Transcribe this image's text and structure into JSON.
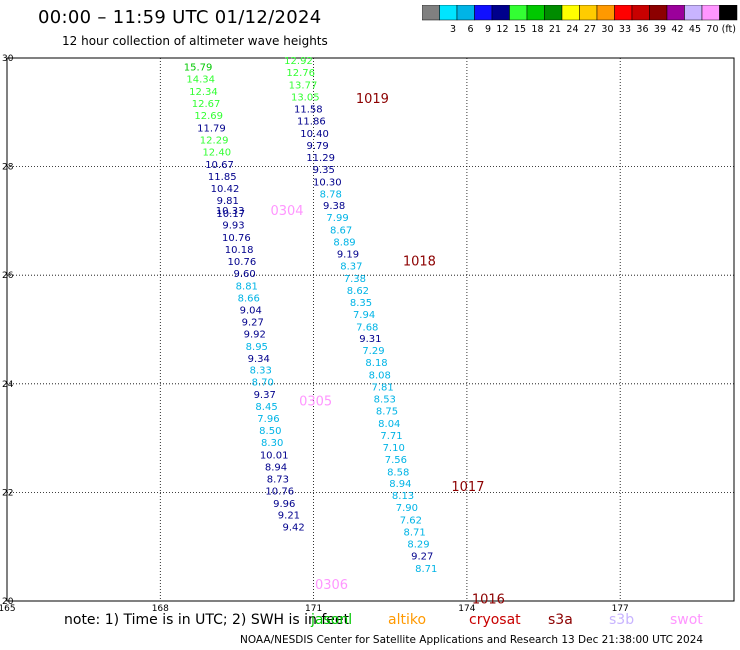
{
  "header": {
    "title": "00:00 – 11:59 UTC 01/12/2024",
    "subtitle": "12 hour collection of altimeter wave heights"
  },
  "colorbar": {
    "unit": "(ft)",
    "bins": [
      {
        "color": "#808080",
        "label": ""
      },
      {
        "color": "#00e5ff",
        "label": "3"
      },
      {
        "color": "#00b4e6",
        "label": "6"
      },
      {
        "color": "#1010ff",
        "label": "9"
      },
      {
        "color": "#00008c",
        "label": "12"
      },
      {
        "color": "#33ff33",
        "label": "15"
      },
      {
        "color": "#00c800",
        "label": "18"
      },
      {
        "color": "#008c00",
        "label": "21"
      },
      {
        "color": "#ffff00",
        "label": "24"
      },
      {
        "color": "#ffcc00",
        "label": "27"
      },
      {
        "color": "#ff9900",
        "label": "30"
      },
      {
        "color": "#ff0000",
        "label": "33"
      },
      {
        "color": "#c80000",
        "label": "36"
      },
      {
        "color": "#8c0000",
        "label": "39"
      },
      {
        "color": "#9b009b",
        "label": "42"
      },
      {
        "color": "#c8b4ff",
        "label": "45"
      },
      {
        "color": "#ff96ff",
        "label": "70"
      },
      {
        "color": "#000000",
        "label": ""
      }
    ]
  },
  "map": {
    "lon_range": [
      165,
      179
    ],
    "lat_range": [
      20,
      30
    ],
    "lon_ticks": [
      "165",
      "168",
      "171",
      "174",
      "177"
    ],
    "lat_ticks": [
      "30",
      "28",
      "26",
      "24",
      "22",
      "20"
    ],
    "track_west": [
      {
        "v": "15.79",
        "lat": 29.83,
        "c": "#00c800"
      },
      {
        "v": "14.34",
        "lat": 29.61,
        "c": "#33ff33"
      },
      {
        "v": "12.34",
        "lat": 29.38,
        "c": "#33ff33"
      },
      {
        "v": "12.67",
        "lat": 29.16,
        "c": "#33ff33"
      },
      {
        "v": "12.69",
        "lat": 28.94,
        "c": "#33ff33"
      },
      {
        "v": "11.79",
        "lat": 28.71,
        "c": "#00008c"
      },
      {
        "v": "12.29",
        "lat": 28.49,
        "c": "#33ff33"
      },
      {
        "v": "12.40",
        "lat": 28.27,
        "c": "#33ff33"
      },
      {
        "v": "10.67",
        "lat": 28.04,
        "c": "#00008c"
      },
      {
        "v": "11.85",
        "lat": 27.82,
        "c": "#00008c"
      },
      {
        "v": "10.42",
        "lat": 27.6,
        "c": "#00008c"
      },
      {
        "v": "9.81",
        "lat": 27.38,
        "c": "#00008c"
      },
      {
        "v": "10.33",
        "lat": 27.19,
        "c": "#00008c"
      },
      {
        "v": "10.17",
        "lat": 27.14,
        "c": "#00008c"
      },
      {
        "v": "9.93",
        "lat": 26.92,
        "c": "#00008c"
      },
      {
        "v": "10.76",
        "lat": 26.69,
        "c": "#00008c"
      },
      {
        "v": "10.18",
        "lat": 26.47,
        "c": "#00008c"
      },
      {
        "v": "10.76",
        "lat": 26.25,
        "c": "#00008c"
      },
      {
        "v": "9.60",
        "lat": 26.03,
        "c": "#00008c"
      },
      {
        "v": "8.81",
        "lat": 25.8,
        "c": "#00b4e6"
      },
      {
        "v": "8.66",
        "lat": 25.58,
        "c": "#00b4e6"
      },
      {
        "v": "9.04",
        "lat": 25.36,
        "c": "#00008c"
      },
      {
        "v": "9.27",
        "lat": 25.14,
        "c": "#00008c"
      },
      {
        "v": "9.92",
        "lat": 24.92,
        "c": "#00008c"
      },
      {
        "v": "8.95",
        "lat": 24.69,
        "c": "#00b4e6"
      },
      {
        "v": "9.34",
        "lat": 24.47,
        "c": "#00008c"
      },
      {
        "v": "8.33",
        "lat": 24.25,
        "c": "#00b4e6"
      },
      {
        "v": "8.70",
        "lat": 24.03,
        "c": "#00b4e6"
      },
      {
        "v": "9.37",
        "lat": 23.8,
        "c": "#00008c"
      },
      {
        "v": "8.45",
        "lat": 23.58,
        "c": "#00b4e6"
      },
      {
        "v": "7.96",
        "lat": 23.36,
        "c": "#00b4e6"
      },
      {
        "v": "8.50",
        "lat": 23.14,
        "c": "#00b4e6"
      },
      {
        "v": "8.30",
        "lat": 22.92,
        "c": "#00b4e6"
      },
      {
        "v": "10.01",
        "lat": 22.69,
        "c": "#00008c"
      },
      {
        "v": "8.94",
        "lat": 22.47,
        "c": "#00008c"
      },
      {
        "v": "8.73",
        "lat": 22.25,
        "c": "#00008c"
      },
      {
        "v": "10.76",
        "lat": 22.03,
        "c": "#00008c"
      },
      {
        "v": "9.96",
        "lat": 21.8,
        "c": "#00008c"
      },
      {
        "v": "9.21",
        "lat": 21.58,
        "c": "#00008c"
      },
      {
        "v": "9.42",
        "lat": 21.36,
        "c": "#00008c"
      }
    ],
    "track_east": [
      {
        "v": "12.92",
        "lat": 29.95,
        "c": "#33ff33"
      },
      {
        "v": "12.76",
        "lat": 29.73,
        "c": "#33ff33"
      },
      {
        "v": "13.77",
        "lat": 29.5,
        "c": "#33ff33"
      },
      {
        "v": "13.05",
        "lat": 29.28,
        "c": "#33ff33"
      },
      {
        "v": "11.58",
        "lat": 29.06,
        "c": "#00008c"
      },
      {
        "v": "11.86",
        "lat": 28.84,
        "c": "#00008c"
      },
      {
        "v": "10.40",
        "lat": 28.61,
        "c": "#00008c"
      },
      {
        "v": "9.79",
        "lat": 28.39,
        "c": "#00008c"
      },
      {
        "v": "11.29",
        "lat": 28.17,
        "c": "#00008c"
      },
      {
        "v": "9.35",
        "lat": 27.95,
        "c": "#00008c"
      },
      {
        "v": "10.30",
        "lat": 27.72,
        "c": "#00008c"
      },
      {
        "v": "8.78",
        "lat": 27.5,
        "c": "#00b4e6"
      },
      {
        "v": "9.38",
        "lat": 27.28,
        "c": "#00008c"
      },
      {
        "v": "7.99",
        "lat": 27.06,
        "c": "#00b4e6"
      },
      {
        "v": "8.67",
        "lat": 26.83,
        "c": "#00b4e6"
      },
      {
        "v": "8.89",
        "lat": 26.61,
        "c": "#00b4e6"
      },
      {
        "v": "9.19",
        "lat": 26.39,
        "c": "#00008c"
      },
      {
        "v": "8.37",
        "lat": 26.17,
        "c": "#00b4e6"
      },
      {
        "v": "7.38",
        "lat": 25.94,
        "c": "#00b4e6"
      },
      {
        "v": "8.62",
        "lat": 25.72,
        "c": "#00b4e6"
      },
      {
        "v": "8.35",
        "lat": 25.5,
        "c": "#00b4e6"
      },
      {
        "v": "7.94",
        "lat": 25.28,
        "c": "#00b4e6"
      },
      {
        "v": "7.68",
        "lat": 25.05,
        "c": "#00b4e6"
      },
      {
        "v": "9.31",
        "lat": 24.83,
        "c": "#00008c"
      },
      {
        "v": "7.29",
        "lat": 24.61,
        "c": "#00b4e6"
      },
      {
        "v": "8.18",
        "lat": 24.39,
        "c": "#00b4e6"
      },
      {
        "v": "8.08",
        "lat": 24.16,
        "c": "#00b4e6"
      },
      {
        "v": "7.81",
        "lat": 23.94,
        "c": "#00b4e6"
      },
      {
        "v": "8.53",
        "lat": 23.72,
        "c": "#00b4e6"
      },
      {
        "v": "8.75",
        "lat": 23.5,
        "c": "#00b4e6"
      },
      {
        "v": "8.04",
        "lat": 23.27,
        "c": "#00b4e6"
      },
      {
        "v": "7.71",
        "lat": 23.05,
        "c": "#00b4e6"
      },
      {
        "v": "7.10",
        "lat": 22.83,
        "c": "#00b4e6"
      },
      {
        "v": "7.56",
        "lat": 22.61,
        "c": "#00b4e6"
      },
      {
        "v": "8.58",
        "lat": 22.38,
        "c": "#00b4e6"
      },
      {
        "v": "8.94",
        "lat": 22.16,
        "c": "#00b4e6"
      },
      {
        "v": "8.13",
        "lat": 21.94,
        "c": "#00b4e6"
      },
      {
        "v": "7.90",
        "lat": 21.72,
        "c": "#00b4e6"
      },
      {
        "v": "7.62",
        "lat": 21.49,
        "c": "#00b4e6"
      },
      {
        "v": "8.71",
        "lat": 21.27,
        "c": "#00b4e6"
      },
      {
        "v": "8.29",
        "lat": 21.05,
        "c": "#00b4e6"
      },
      {
        "v": "9.27",
        "lat": 20.83,
        "c": "#00008c"
      },
      {
        "v": "8.71",
        "lat": 20.6,
        "c": "#00b4e6"
      }
    ],
    "time_labels": [
      {
        "text": "1019",
        "lon": 172.15,
        "lat": 29.26,
        "c": "#8c0000"
      },
      {
        "text": "1018",
        "lon": 173.07,
        "lat": 26.27,
        "c": "#8c0000"
      },
      {
        "text": "1017",
        "lon": 174.02,
        "lat": 22.12,
        "c": "#8c0000"
      },
      {
        "text": "1016",
        "lon": 174.42,
        "lat": 20.05,
        "c": "#8c0000"
      },
      {
        "text": "0304",
        "lon": 170.48,
        "lat": 27.2,
        "c": "#ff96ff"
      },
      {
        "text": "0305",
        "lon": 171.04,
        "lat": 23.69,
        "c": "#ff96ff"
      },
      {
        "text": "0306",
        "lon": 171.35,
        "lat": 20.31,
        "c": "#ff96ff"
      }
    ]
  },
  "footer": {
    "note": "note:  1) Time is in UTC; 2) SWH is in feet",
    "legend": [
      {
        "text": "jasonl",
        "c": "#00c800"
      },
      {
        "text": "altiko",
        "c": "#ff9900"
      },
      {
        "text": "cryosat",
        "c": "#c80000"
      },
      {
        "text": "s3a",
        "c": "#8c0000"
      },
      {
        "text": "s3b",
        "c": "#c8b4ff"
      },
      {
        "text": "swot",
        "c": "#ff96ff"
      }
    ],
    "credit": "NOAA/NESDIS Center for Satellite Applications and Research    13 Dec 21:38:00 UTC 2024"
  }
}
